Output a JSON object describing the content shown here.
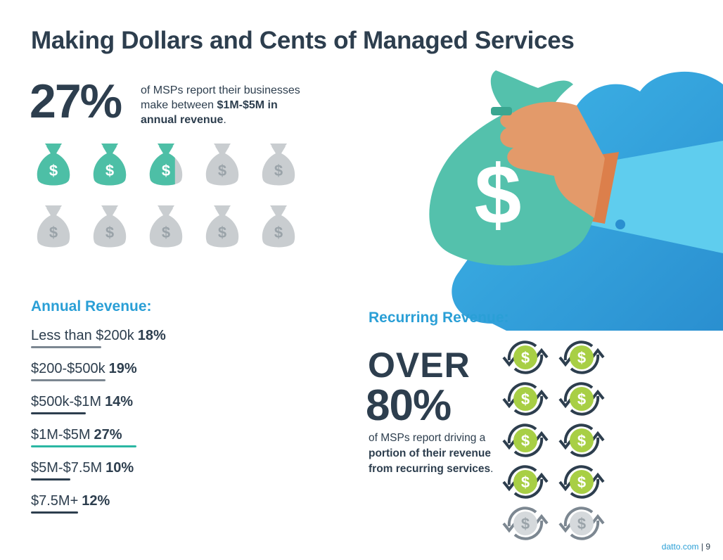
{
  "title": "Making Dollars and Cents of Managed Services",
  "stat_27": {
    "value": "27%",
    "desc_prefix": "of MSPs report their businesses make between",
    "desc_bold": "$1M-$5M in annual revenue",
    "desc_suffix": "."
  },
  "bag_symbol": "$",
  "annual_heading": "Annual Revenue:",
  "recurring_heading": "Recurring Revenue:",
  "recurring": {
    "over": "OVER",
    "value": "80%",
    "desc_prefix": "of MSPs report driving a",
    "desc_bold": "portion of their revenue from recurring services",
    "desc_suffix": "."
  },
  "coin_symbol": "$",
  "footer": {
    "site": "datto.com",
    "sep": "|",
    "page": "9"
  },
  "colors": {
    "navy": "#2d3e4e",
    "teal": "#4dbfa6",
    "gray": "#c9cdd0",
    "blue": "#2a9fd6",
    "lime": "#a8cf45",
    "bar_gray": "#7c8791",
    "bar_dark": "#2d3e4e",
    "bar_teal": "#2bb7a3"
  },
  "chart_data": [
    {
      "type": "bar",
      "title": "Annual Revenue:",
      "categories": [
        "Less than $200k",
        "$200-$500k",
        "$500k-$1M",
        "$1M-$5M",
        "$5M-$7.5M",
        "$7.5M+"
      ],
      "values": [
        18,
        19,
        14,
        27,
        10,
        12
      ],
      "labels": [
        "18%",
        "19%",
        "14%",
        "27%",
        "10%",
        "12%"
      ],
      "unit": "%",
      "highlight": "$1M-$5M"
    },
    {
      "type": "pictogram",
      "title": "27% of MSPs report their businesses make between $1M-$5M in annual revenue.",
      "total_icons": 10,
      "filled_fraction": 0.27,
      "value": 27
    },
    {
      "type": "pictogram",
      "title": "Recurring Revenue: OVER 80%",
      "total_icons": 10,
      "filled_fraction": 0.85,
      "value": 80
    }
  ]
}
